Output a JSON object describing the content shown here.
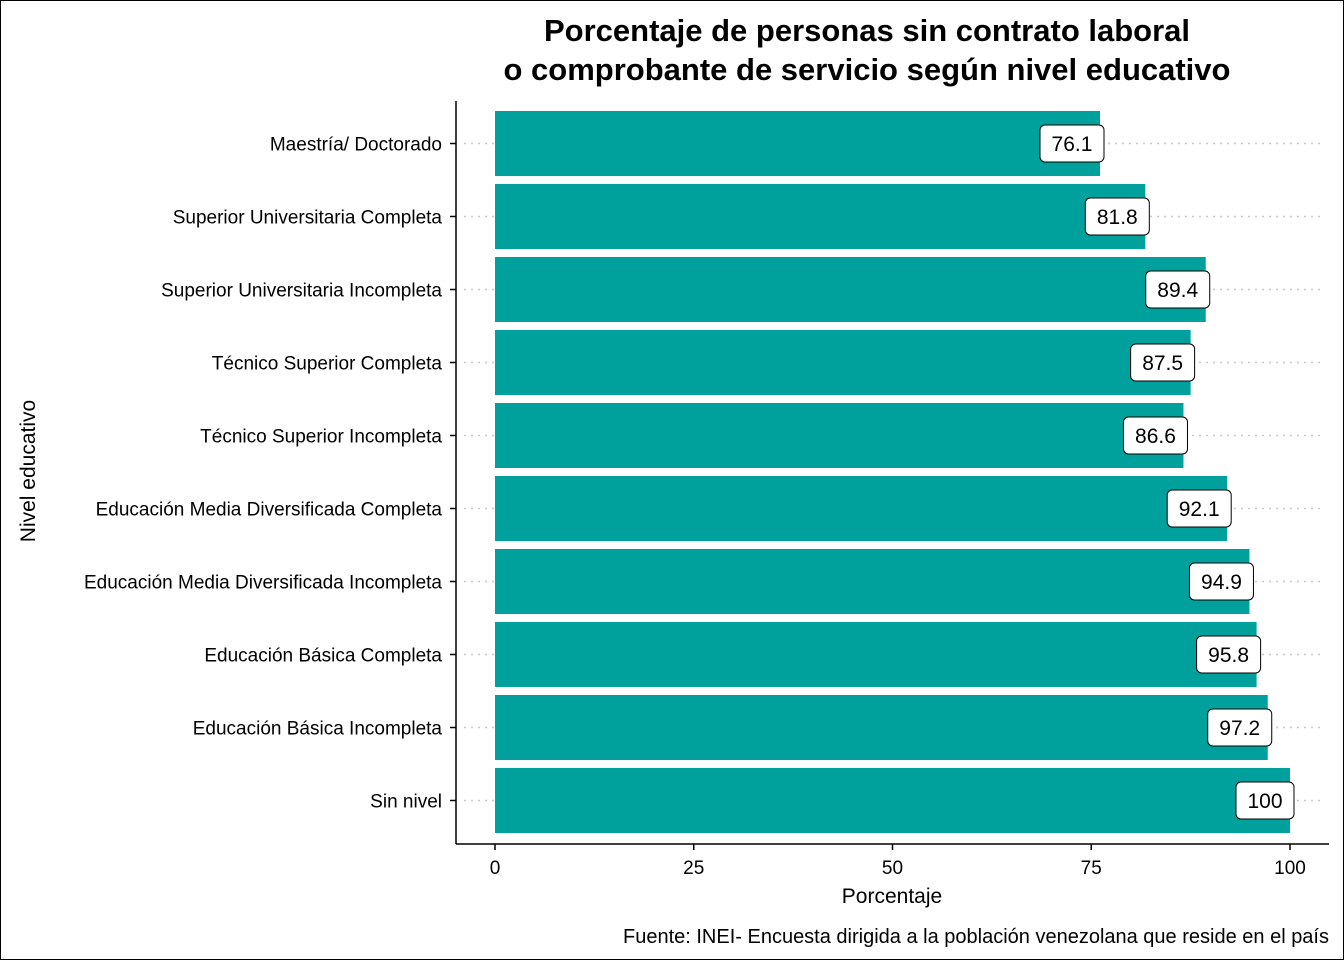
{
  "chart_data": {
    "type": "bar",
    "orientation": "horizontal",
    "title_lines": [
      "Porcentaje de personas sin contrato laboral",
      "o comprobante de servicio según nivel educativo"
    ],
    "xlabel": "Porcentaje",
    "ylabel": "Nivel educativo",
    "caption": "Fuente: INEI- Encuesta dirigida a la población venezolana que reside en el país",
    "categories": [
      "Maestría/ Doctorado",
      "Superior Universitaria Completa",
      "Superior Universitaria Incompleta",
      "Técnico Superior Completa",
      "Técnico Superior Incompleta",
      "Educación Media Diversificada Completa",
      "Educación Media Diversificada Incompleta",
      "Educación Básica Completa",
      "Educación Básica Incompleta",
      "Sin nivel"
    ],
    "values": [
      76.1,
      81.8,
      89.4,
      87.5,
      86.6,
      92.1,
      94.9,
      95.8,
      97.2,
      100
    ],
    "value_labels": [
      "76.1",
      "81.8",
      "89.4",
      "87.5",
      "86.6",
      "92.1",
      "94.9",
      "95.8",
      "97.2",
      "100"
    ],
    "xlim": [
      0,
      100
    ],
    "x_ticks": [
      0,
      25,
      50,
      75,
      100
    ],
    "x_tick_labels": [
      "0",
      "25",
      "50",
      "75",
      "100"
    ],
    "bar_color": "#00A19D",
    "grid": "horizontal dotted",
    "legend": "none"
  }
}
